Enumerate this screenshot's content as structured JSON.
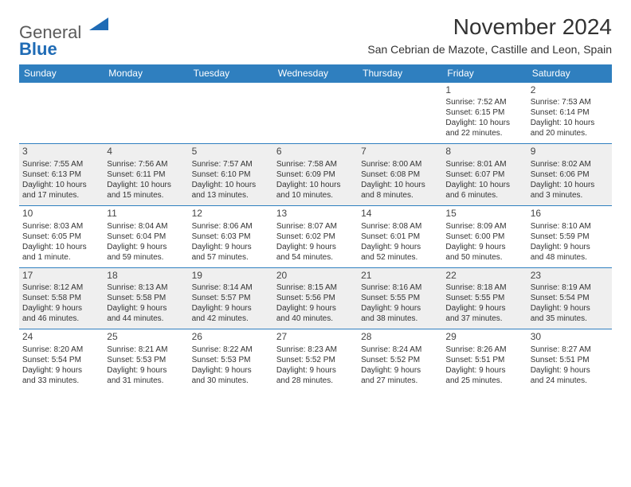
{
  "logo": {
    "text_top": "General",
    "text_bottom": "Blue"
  },
  "title": "November 2024",
  "location": "San Cebrian de Mazote, Castille and Leon, Spain",
  "colors": {
    "header_bg": "#2f7fbf",
    "header_text": "#ffffff",
    "shaded_row": "#efefef",
    "border": "#2f7fbf",
    "body_text": "#333333"
  },
  "fonts": {
    "title_size": 28,
    "location_size": 14,
    "dayheader_size": 12,
    "cell_size": 10
  },
  "day_headers": [
    "Sunday",
    "Monday",
    "Tuesday",
    "Wednesday",
    "Thursday",
    "Friday",
    "Saturday"
  ],
  "weeks": [
    {
      "shaded": false,
      "days": [
        null,
        null,
        null,
        null,
        null,
        {
          "n": "1",
          "sunrise": "Sunrise: 7:52 AM",
          "sunset": "Sunset: 6:15 PM",
          "day1": "Daylight: 10 hours",
          "day2": "and 22 minutes."
        },
        {
          "n": "2",
          "sunrise": "Sunrise: 7:53 AM",
          "sunset": "Sunset: 6:14 PM",
          "day1": "Daylight: 10 hours",
          "day2": "and 20 minutes."
        }
      ]
    },
    {
      "shaded": true,
      "days": [
        {
          "n": "3",
          "sunrise": "Sunrise: 7:55 AM",
          "sunset": "Sunset: 6:13 PM",
          "day1": "Daylight: 10 hours",
          "day2": "and 17 minutes."
        },
        {
          "n": "4",
          "sunrise": "Sunrise: 7:56 AM",
          "sunset": "Sunset: 6:11 PM",
          "day1": "Daylight: 10 hours",
          "day2": "and 15 minutes."
        },
        {
          "n": "5",
          "sunrise": "Sunrise: 7:57 AM",
          "sunset": "Sunset: 6:10 PM",
          "day1": "Daylight: 10 hours",
          "day2": "and 13 minutes."
        },
        {
          "n": "6",
          "sunrise": "Sunrise: 7:58 AM",
          "sunset": "Sunset: 6:09 PM",
          "day1": "Daylight: 10 hours",
          "day2": "and 10 minutes."
        },
        {
          "n": "7",
          "sunrise": "Sunrise: 8:00 AM",
          "sunset": "Sunset: 6:08 PM",
          "day1": "Daylight: 10 hours",
          "day2": "and 8 minutes."
        },
        {
          "n": "8",
          "sunrise": "Sunrise: 8:01 AM",
          "sunset": "Sunset: 6:07 PM",
          "day1": "Daylight: 10 hours",
          "day2": "and 6 minutes."
        },
        {
          "n": "9",
          "sunrise": "Sunrise: 8:02 AM",
          "sunset": "Sunset: 6:06 PM",
          "day1": "Daylight: 10 hours",
          "day2": "and 3 minutes."
        }
      ]
    },
    {
      "shaded": false,
      "days": [
        {
          "n": "10",
          "sunrise": "Sunrise: 8:03 AM",
          "sunset": "Sunset: 6:05 PM",
          "day1": "Daylight: 10 hours",
          "day2": "and 1 minute."
        },
        {
          "n": "11",
          "sunrise": "Sunrise: 8:04 AM",
          "sunset": "Sunset: 6:04 PM",
          "day1": "Daylight: 9 hours",
          "day2": "and 59 minutes."
        },
        {
          "n": "12",
          "sunrise": "Sunrise: 8:06 AM",
          "sunset": "Sunset: 6:03 PM",
          "day1": "Daylight: 9 hours",
          "day2": "and 57 minutes."
        },
        {
          "n": "13",
          "sunrise": "Sunrise: 8:07 AM",
          "sunset": "Sunset: 6:02 PM",
          "day1": "Daylight: 9 hours",
          "day2": "and 54 minutes."
        },
        {
          "n": "14",
          "sunrise": "Sunrise: 8:08 AM",
          "sunset": "Sunset: 6:01 PM",
          "day1": "Daylight: 9 hours",
          "day2": "and 52 minutes."
        },
        {
          "n": "15",
          "sunrise": "Sunrise: 8:09 AM",
          "sunset": "Sunset: 6:00 PM",
          "day1": "Daylight: 9 hours",
          "day2": "and 50 minutes."
        },
        {
          "n": "16",
          "sunrise": "Sunrise: 8:10 AM",
          "sunset": "Sunset: 5:59 PM",
          "day1": "Daylight: 9 hours",
          "day2": "and 48 minutes."
        }
      ]
    },
    {
      "shaded": true,
      "days": [
        {
          "n": "17",
          "sunrise": "Sunrise: 8:12 AM",
          "sunset": "Sunset: 5:58 PM",
          "day1": "Daylight: 9 hours",
          "day2": "and 46 minutes."
        },
        {
          "n": "18",
          "sunrise": "Sunrise: 8:13 AM",
          "sunset": "Sunset: 5:58 PM",
          "day1": "Daylight: 9 hours",
          "day2": "and 44 minutes."
        },
        {
          "n": "19",
          "sunrise": "Sunrise: 8:14 AM",
          "sunset": "Sunset: 5:57 PM",
          "day1": "Daylight: 9 hours",
          "day2": "and 42 minutes."
        },
        {
          "n": "20",
          "sunrise": "Sunrise: 8:15 AM",
          "sunset": "Sunset: 5:56 PM",
          "day1": "Daylight: 9 hours",
          "day2": "and 40 minutes."
        },
        {
          "n": "21",
          "sunrise": "Sunrise: 8:16 AM",
          "sunset": "Sunset: 5:55 PM",
          "day1": "Daylight: 9 hours",
          "day2": "and 38 minutes."
        },
        {
          "n": "22",
          "sunrise": "Sunrise: 8:18 AM",
          "sunset": "Sunset: 5:55 PM",
          "day1": "Daylight: 9 hours",
          "day2": "and 37 minutes."
        },
        {
          "n": "23",
          "sunrise": "Sunrise: 8:19 AM",
          "sunset": "Sunset: 5:54 PM",
          "day1": "Daylight: 9 hours",
          "day2": "and 35 minutes."
        }
      ]
    },
    {
      "shaded": false,
      "days": [
        {
          "n": "24",
          "sunrise": "Sunrise: 8:20 AM",
          "sunset": "Sunset: 5:54 PM",
          "day1": "Daylight: 9 hours",
          "day2": "and 33 minutes."
        },
        {
          "n": "25",
          "sunrise": "Sunrise: 8:21 AM",
          "sunset": "Sunset: 5:53 PM",
          "day1": "Daylight: 9 hours",
          "day2": "and 31 minutes."
        },
        {
          "n": "26",
          "sunrise": "Sunrise: 8:22 AM",
          "sunset": "Sunset: 5:53 PM",
          "day1": "Daylight: 9 hours",
          "day2": "and 30 minutes."
        },
        {
          "n": "27",
          "sunrise": "Sunrise: 8:23 AM",
          "sunset": "Sunset: 5:52 PM",
          "day1": "Daylight: 9 hours",
          "day2": "and 28 minutes."
        },
        {
          "n": "28",
          "sunrise": "Sunrise: 8:24 AM",
          "sunset": "Sunset: 5:52 PM",
          "day1": "Daylight: 9 hours",
          "day2": "and 27 minutes."
        },
        {
          "n": "29",
          "sunrise": "Sunrise: 8:26 AM",
          "sunset": "Sunset: 5:51 PM",
          "day1": "Daylight: 9 hours",
          "day2": "and 25 minutes."
        },
        {
          "n": "30",
          "sunrise": "Sunrise: 8:27 AM",
          "sunset": "Sunset: 5:51 PM",
          "day1": "Daylight: 9 hours",
          "day2": "and 24 minutes."
        }
      ]
    }
  ]
}
